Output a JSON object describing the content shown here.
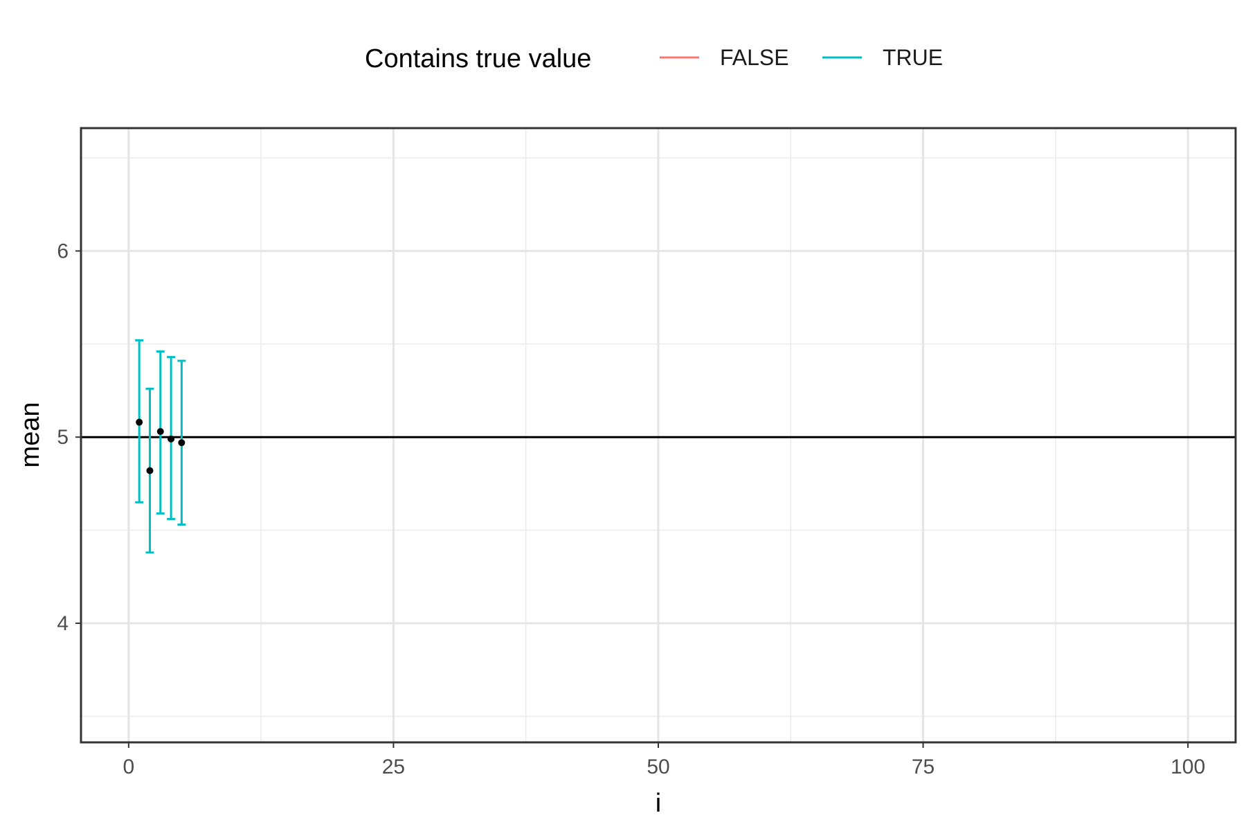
{
  "legend": {
    "title": "Contains true value",
    "entries": [
      {
        "label": "FALSE",
        "color": "#F8766D"
      },
      {
        "label": "TRUE",
        "color": "#00BFC4"
      }
    ]
  },
  "chart_data": {
    "type": "scatter",
    "xlabel": "i",
    "ylabel": "mean",
    "xlim": [
      -4.5,
      104.5
    ],
    "ylim": [
      3.36,
      6.66
    ],
    "x_ticks": [
      0,
      25,
      50,
      75,
      100
    ],
    "y_ticks": [
      4,
      5,
      6
    ],
    "grid": true,
    "legend_position": "top",
    "reference_line": {
      "y": 5,
      "color": "#000000"
    },
    "points": [
      {
        "i": 1,
        "mean": 5.08,
        "lower": 4.65,
        "upper": 5.52,
        "contains_true_value": "TRUE"
      },
      {
        "i": 2,
        "mean": 4.82,
        "lower": 4.38,
        "upper": 5.26,
        "contains_true_value": "TRUE"
      },
      {
        "i": 3,
        "mean": 5.03,
        "lower": 4.59,
        "upper": 5.46,
        "contains_true_value": "TRUE"
      },
      {
        "i": 4,
        "mean": 4.99,
        "lower": 4.56,
        "upper": 5.43,
        "contains_true_value": "TRUE"
      },
      {
        "i": 5,
        "mean": 4.97,
        "lower": 4.53,
        "upper": 5.41,
        "contains_true_value": "TRUE"
      }
    ]
  }
}
